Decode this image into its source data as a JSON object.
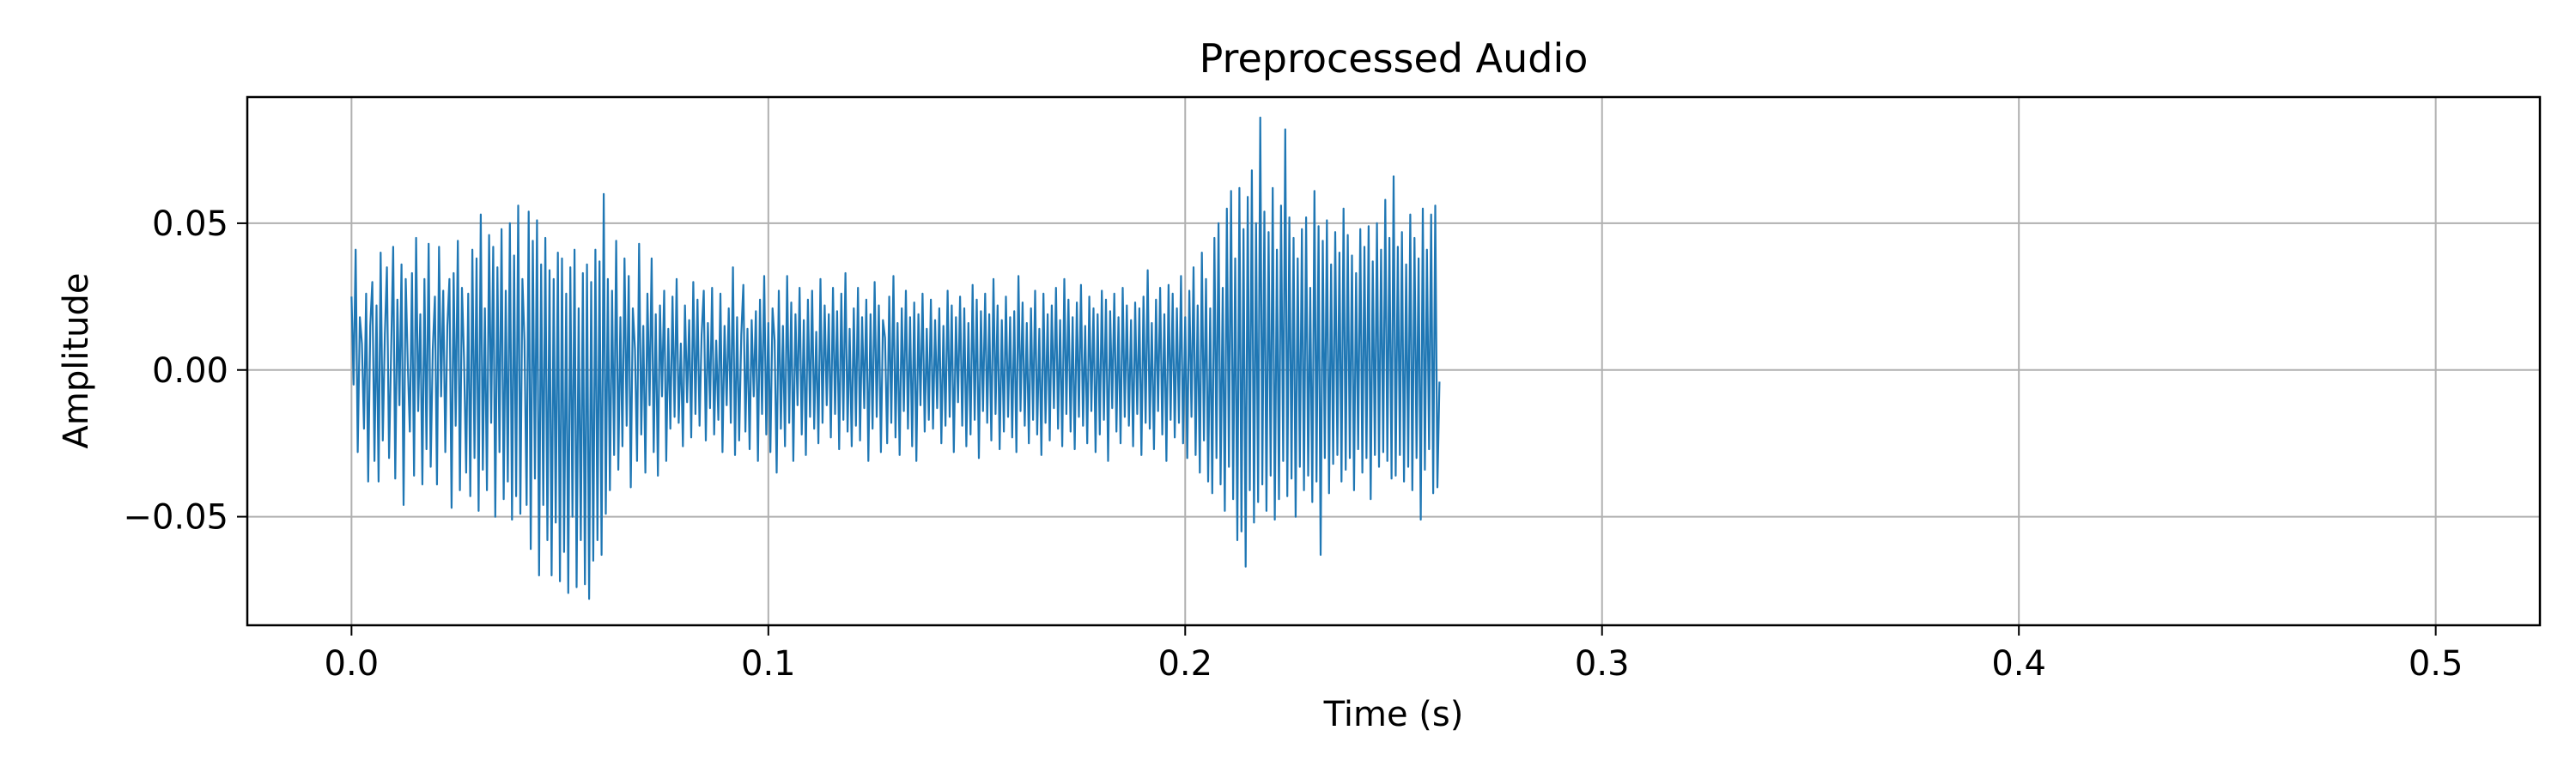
{
  "chart_data": {
    "type": "line",
    "title": "Preprocessed Audio",
    "xlabel": "Time (s)",
    "ylabel": "Amplitude",
    "xlim": [
      -0.025,
      0.525
    ],
    "ylim": [
      -0.087,
      0.093
    ],
    "grid": true,
    "legend": "none",
    "line_color": "#1f77b4",
    "x_ticks": [
      {
        "value": 0.0,
        "label": "0.0"
      },
      {
        "value": 0.1,
        "label": "0.1"
      },
      {
        "value": 0.2,
        "label": "0.2"
      },
      {
        "value": 0.3,
        "label": "0.3"
      },
      {
        "value": 0.4,
        "label": "0.4"
      },
      {
        "value": 0.5,
        "label": "0.5"
      }
    ],
    "y_ticks": [
      {
        "value": -0.05,
        "label": "−0.05"
      },
      {
        "value": 0.0,
        "label": "0.00"
      },
      {
        "value": 0.05,
        "label": "0.05"
      }
    ],
    "series": [
      {
        "x_start": 0.0,
        "x_step": 0.0005,
        "values": [
          0.025,
          -0.005,
          0.041,
          -0.028,
          0.018,
          0.009,
          -0.02,
          0.026,
          -0.038,
          0.015,
          0.03,
          -0.031,
          0.022,
          -0.038,
          0.04,
          -0.024,
          0.012,
          0.035,
          -0.03,
          0.006,
          0.042,
          -0.037,
          0.024,
          -0.012,
          0.036,
          -0.046,
          0.031,
          0.002,
          -0.021,
          0.033,
          -0.036,
          0.045,
          -0.014,
          0.019,
          -0.039,
          0.031,
          -0.027,
          0.043,
          -0.033,
          0.007,
          0.025,
          -0.039,
          0.042,
          -0.009,
          0.027,
          -0.028,
          0.015,
          0.031,
          -0.047,
          0.033,
          -0.019,
          0.044,
          -0.041,
          0.028,
          0.004,
          -0.035,
          0.026,
          -0.043,
          0.041,
          -0.03,
          0.038,
          -0.048,
          0.053,
          -0.034,
          0.021,
          -0.041,
          0.046,
          -0.018,
          0.042,
          -0.05,
          0.035,
          -0.028,
          0.048,
          -0.044,
          0.027,
          -0.038,
          0.05,
          -0.051,
          0.039,
          -0.043,
          0.056,
          -0.049,
          0.031,
          0.01,
          -0.046,
          0.054,
          -0.061,
          0.044,
          -0.037,
          0.051,
          -0.07,
          0.036,
          -0.046,
          0.045,
          -0.058,
          0.034,
          -0.07,
          0.031,
          -0.052,
          0.04,
          -0.072,
          0.038,
          -0.062,
          0.026,
          -0.076,
          0.035,
          -0.05,
          0.041,
          -0.074,
          0.021,
          -0.058,
          0.033,
          -0.073,
          0.036,
          -0.078,
          0.03,
          -0.065,
          0.041,
          -0.058,
          0.037,
          -0.063,
          0.06,
          -0.049,
          0.031,
          -0.041,
          0.027,
          -0.029,
          0.044,
          -0.034,
          0.018,
          -0.026,
          0.038,
          -0.019,
          0.032,
          -0.04,
          0.021,
          0.007,
          -0.031,
          0.043,
          -0.022,
          0.015,
          -0.035,
          0.026,
          -0.012,
          0.038,
          -0.028,
          0.019,
          -0.036,
          0.022,
          -0.009,
          0.027,
          -0.031,
          0.014,
          -0.02,
          0.025,
          -0.016,
          0.031,
          -0.018,
          0.009,
          -0.026,
          0.022,
          -0.011,
          0.017,
          -0.023,
          0.03,
          -0.015,
          0.024,
          -0.019,
          0.012,
          0.027,
          -0.024,
          0.016,
          -0.013,
          0.028,
          -0.022,
          0.01,
          -0.017,
          0.026,
          -0.028,
          0.015,
          -0.012,
          0.021,
          -0.018,
          0.035,
          -0.029,
          0.018,
          -0.024,
          0.012,
          0.029,
          -0.021,
          0.014,
          -0.027,
          0.017,
          -0.009,
          0.02,
          -0.031,
          0.024,
          -0.015,
          0.032,
          -0.022,
          0.016,
          -0.028,
          0.021,
          0.01,
          -0.035,
          0.027,
          -0.02,
          0.015,
          -0.026,
          0.032,
          -0.018,
          0.023,
          -0.031,
          0.019,
          -0.012,
          0.028,
          -0.022,
          0.017,
          -0.029,
          0.024,
          -0.016,
          0.027,
          -0.02,
          0.013,
          -0.025,
          0.031,
          -0.018,
          0.022,
          -0.012,
          0.019,
          -0.023,
          0.028,
          -0.015,
          0.02,
          -0.027,
          0.026,
          -0.017,
          0.033,
          -0.021,
          0.014,
          -0.026,
          0.021,
          -0.019,
          0.028,
          -0.024,
          0.018,
          -0.013,
          0.024,
          -0.031,
          0.019,
          -0.02,
          0.03,
          -0.016,
          0.022,
          -0.028,
          0.017,
          0.011,
          -0.025,
          0.025,
          -0.018,
          0.032,
          -0.023,
          0.016,
          -0.029,
          0.021,
          -0.014,
          0.027,
          -0.02,
          0.018,
          -0.026,
          0.023,
          -0.031,
          0.019,
          -0.012,
          0.026,
          -0.021,
          0.014,
          -0.017,
          0.024,
          -0.02,
          0.017,
          -0.013,
          0.021,
          -0.025,
          0.015,
          -0.019,
          0.027,
          -0.016,
          0.022,
          -0.028,
          0.018,
          -0.011,
          0.025,
          -0.019,
          0.021,
          -0.026,
          0.016,
          -0.022,
          0.029,
          -0.017,
          0.024,
          -0.03,
          0.02,
          -0.014,
          0.026,
          -0.018,
          0.019,
          -0.024,
          0.031,
          -0.015,
          0.022,
          -0.027,
          0.017,
          -0.021,
          0.025,
          -0.016,
          0.018,
          -0.023,
          0.02,
          -0.028,
          0.032,
          -0.014,
          0.023,
          -0.019,
          0.016,
          -0.025,
          0.021,
          -0.017,
          0.027,
          -0.022,
          0.014,
          -0.029,
          0.026,
          -0.018,
          0.019,
          -0.024,
          0.022,
          -0.013,
          0.028,
          -0.02,
          0.017,
          -0.026,
          0.031,
          -0.015,
          0.024,
          -0.021,
          0.018,
          -0.027,
          0.023,
          -0.016,
          0.029,
          -0.019,
          0.015,
          -0.025,
          0.025,
          -0.014,
          0.021,
          -0.028,
          0.019,
          -0.022,
          0.027,
          -0.017,
          0.024,
          -0.031,
          0.02,
          -0.013,
          0.026,
          -0.021,
          0.018,
          -0.025,
          0.028,
          -0.016,
          0.022,
          -0.019,
          0.017,
          -0.026,
          0.023,
          -0.015,
          0.021,
          -0.029,
          0.025,
          -0.018,
          0.034,
          -0.02,
          0.016,
          -0.027,
          0.024,
          -0.014,
          0.028,
          -0.022,
          0.019,
          -0.031,
          0.029,
          -0.017,
          0.026,
          -0.023,
          0.021,
          -0.018,
          0.032,
          -0.025,
          0.018,
          -0.03,
          0.027,
          -0.016,
          0.035,
          -0.029,
          0.022,
          -0.035,
          0.04,
          -0.024,
          0.031,
          -0.038,
          0.021,
          -0.042,
          0.045,
          -0.03,
          0.05,
          -0.039,
          0.028,
          -0.048,
          0.055,
          -0.033,
          0.061,
          -0.044,
          0.038,
          -0.058,
          0.062,
          -0.055,
          0.048,
          -0.067,
          0.059,
          -0.041,
          0.068,
          -0.052,
          0.05,
          -0.045,
          0.086,
          -0.039,
          0.054,
          -0.048,
          0.047,
          -0.036,
          0.062,
          -0.051,
          0.041,
          -0.044,
          0.056,
          -0.031,
          0.082,
          -0.043,
          0.052,
          -0.037,
          0.045,
          -0.05,
          0.038,
          -0.033,
          0.048,
          -0.041,
          0.052,
          -0.036,
          0.028,
          -0.045,
          0.061,
          -0.038,
          0.049,
          -0.063,
          0.044,
          -0.03,
          0.051,
          -0.042,
          0.036,
          -0.032,
          0.047,
          -0.029,
          0.04,
          -0.038,
          0.055,
          -0.034,
          0.046,
          -0.03,
          0.039,
          -0.041,
          0.033,
          -0.027,
          0.048,
          -0.035,
          0.042,
          -0.03,
          0.049,
          -0.044,
          0.037,
          -0.029,
          0.05,
          -0.033,
          0.041,
          -0.028,
          0.058,
          -0.031,
          0.045,
          -0.037,
          0.066,
          -0.036,
          0.042,
          -0.029,
          0.047,
          -0.038,
          0.036,
          -0.033,
          0.053,
          -0.041,
          0.045,
          -0.03,
          0.038,
          -0.051,
          0.055,
          -0.034,
          0.041,
          -0.027,
          0.053,
          -0.042,
          0.056,
          -0.04,
          -0.004
        ]
      }
    ]
  }
}
